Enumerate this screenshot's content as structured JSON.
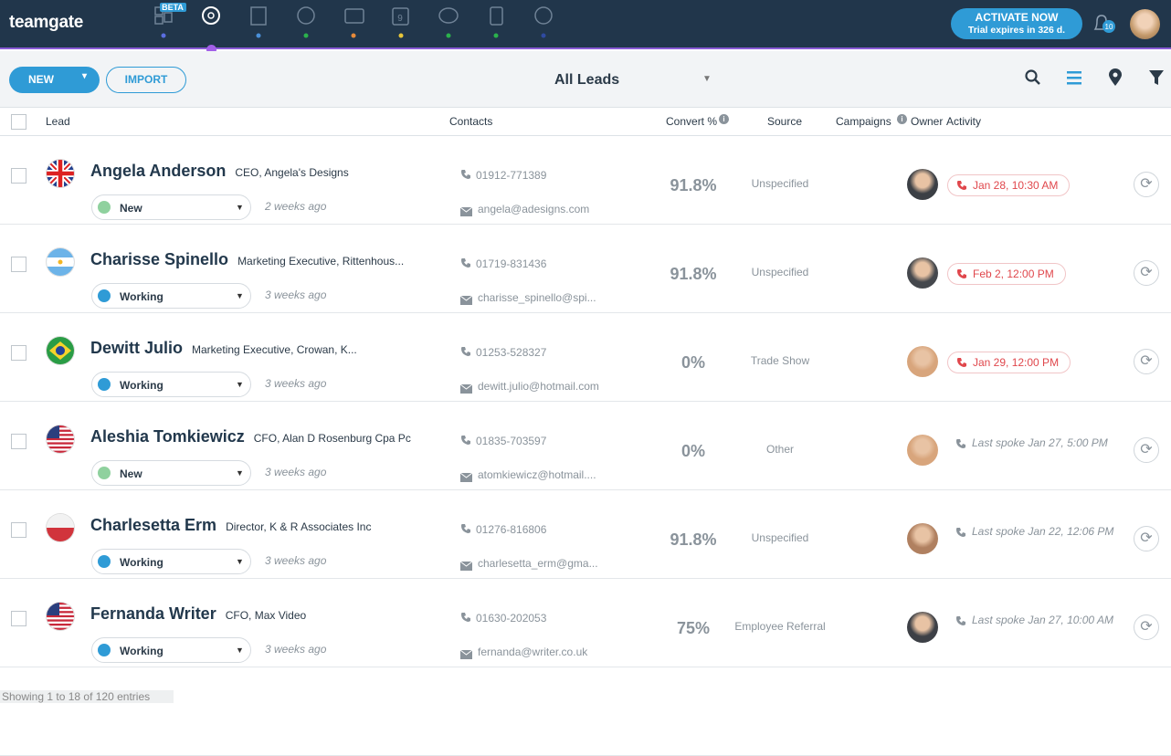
{
  "header": {
    "logo": "teamgate",
    "beta": "BETA",
    "calendar_day": "9",
    "activate": "ACTIVATE NOW",
    "trial": "Trial expires in 326 d.",
    "notifications": "10"
  },
  "toolbar": {
    "new": "NEW",
    "import": "IMPORT",
    "view": "All Leads"
  },
  "columns": [
    "Lead",
    "Contacts",
    "Convert %",
    "Source",
    "Campaigns",
    "Owner",
    "Activity"
  ],
  "rows": [
    {
      "name": "Angela Anderson",
      "title": "CEO, Angela's Designs",
      "status": "New",
      "added": "2 weeks ago",
      "phone": "01912-771389",
      "email": "angela@adesigns.com",
      "convert": "91.8%",
      "source": "Unspecified",
      "activity": "Jan 28, 10:30 AM"
    },
    {
      "name": "Charisse Spinello",
      "title": "Marketing Executive, Rittenhous...",
      "status": "Working",
      "added": "3 weeks ago",
      "phone": "01719-831436",
      "email": "charisse_spinello@spi...",
      "convert": "91.8%",
      "source": "Unspecified",
      "activity": "Feb 2, 12:00 PM"
    },
    {
      "name": "Dewitt Julio",
      "title": "Marketing Executive, Crowan, K...",
      "status": "Working",
      "added": "3 weeks ago",
      "phone": "01253-528327",
      "email": "dewitt.julio@hotmail.com",
      "convert": "0%",
      "source": "Trade Show",
      "activity": "Jan 29, 12:00 PM"
    },
    {
      "name": "Aleshia Tomkiewicz",
      "title": "CFO, Alan D Rosenburg Cpa Pc",
      "status": "New",
      "added": "3 weeks ago",
      "phone": "01835-703597",
      "email": "atomkiewicz@hotmail....",
      "convert": "0%",
      "source": "Other",
      "activity": "Last spoke Jan 27, 5:00 PM"
    },
    {
      "name": "Charlesetta Erm",
      "title": "Director, K & R Associates Inc",
      "status": "Working",
      "added": "3 weeks ago",
      "phone": "01276-816806",
      "email": "charlesetta_erm@gma...",
      "convert": "91.8%",
      "source": "Unspecified",
      "activity": "Last spoke Jan 22, 12:06 PM"
    },
    {
      "name": "Fernanda Writer",
      "title": "CFO, Max Video",
      "status": "Working",
      "added": "3 weeks ago",
      "phone": "01630-202053",
      "email": "fernanda@writer.co.uk",
      "convert": "75%",
      "source": "Employee Referral",
      "activity": "Last spoke Jan 27, 10:00 AM"
    }
  ],
  "footer": "Showing 1 to 18 of 120 entries"
}
